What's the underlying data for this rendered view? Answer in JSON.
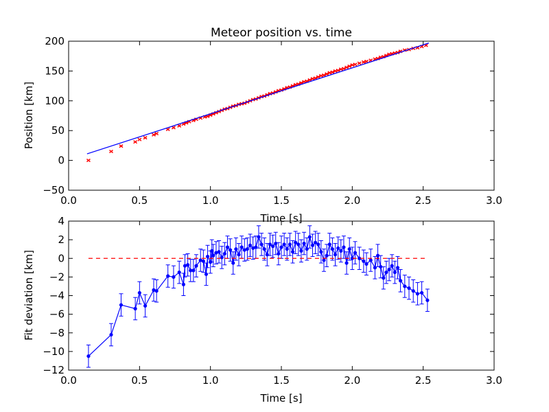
{
  "chart_data": [
    {
      "type": "scatter",
      "title": "Meteor position vs. time",
      "xlabel": "Time [s]",
      "ylabel": "Position [km]",
      "xlim": [
        0.0,
        3.0
      ],
      "ylim": [
        -50,
        200
      ],
      "xticks": [
        "0.0",
        "0.5",
        "1.0",
        "1.5",
        "2.0",
        "2.5",
        "3.0"
      ],
      "yticks": [
        "−50",
        "0",
        "50",
        "100",
        "150",
        "200"
      ],
      "grid": false,
      "series": [
        {
          "kind": "scatter_errorbar",
          "color": "#ff0000",
          "marker": "x",
          "errors": 1.0,
          "x": [
            0.14,
            0.3,
            0.37,
            0.47,
            0.5,
            0.54,
            0.6,
            0.62,
            0.7,
            0.74,
            0.78,
            0.81,
            0.83,
            0.85,
            0.88,
            0.9,
            0.93,
            0.96,
            0.98,
            1.0,
            1.02,
            1.04,
            1.06,
            1.08,
            1.1,
            1.12,
            1.14,
            1.16,
            1.18,
            1.2,
            1.22,
            1.24,
            1.26,
            1.28,
            1.3,
            1.32,
            1.34,
            1.36,
            1.38,
            1.4,
            1.42,
            1.44,
            1.46,
            1.48,
            1.5,
            1.52,
            1.54,
            1.56,
            1.58,
            1.6,
            1.62,
            1.64,
            1.66,
            1.68,
            1.7,
            1.72,
            1.74,
            1.76,
            1.78,
            1.8,
            1.82,
            1.84,
            1.86,
            1.88,
            1.9,
            1.92,
            1.94,
            1.96,
            1.98,
            2.0,
            2.02,
            2.05,
            2.08,
            2.1,
            2.13,
            2.16,
            2.18,
            2.2,
            2.22,
            2.24,
            2.26,
            2.28,
            2.3,
            2.32,
            2.34,
            2.37,
            2.4,
            2.43,
            2.46,
            2.49,
            2.52
          ],
          "y": [
            0,
            15,
            24,
            31,
            35,
            38,
            43,
            45,
            52,
            55,
            58,
            61,
            63,
            65,
            67,
            69,
            71,
            73,
            74,
            76,
            78,
            80,
            82,
            84,
            86,
            87,
            89,
            91,
            92,
            94,
            95,
            96,
            98,
            100,
            102,
            103,
            105,
            107,
            108,
            110,
            112,
            113,
            115,
            117,
            118,
            120,
            122,
            123,
            125,
            127,
            128,
            130,
            132,
            133,
            135,
            137,
            138,
            140,
            142,
            143,
            145,
            147,
            148,
            150,
            151,
            153,
            154,
            156,
            158,
            160,
            161,
            163,
            165,
            166,
            168,
            170,
            171,
            173,
            174,
            176,
            178,
            179,
            180,
            181,
            183,
            185,
            186,
            188,
            189,
            191,
            193
          ]
        },
        {
          "kind": "fit_line",
          "color": "#0000ff",
          "x": [
            0.13,
            2.54
          ],
          "y": [
            11,
            197
          ]
        }
      ]
    },
    {
      "type": "line",
      "xlabel": "Time [s]",
      "ylabel": "Fit deviation [km]",
      "xlim": [
        0.0,
        3.0
      ],
      "ylim": [
        -12,
        4
      ],
      "xticks": [
        "0.0",
        "0.5",
        "1.0",
        "1.5",
        "2.0",
        "2.5",
        "3.0"
      ],
      "yticks": [
        "−12",
        "−10",
        "−8",
        "−6",
        "−4",
        "−2",
        "0",
        "2",
        "4"
      ],
      "grid": false,
      "series": [
        {
          "kind": "line_errorbar",
          "color": "#0000ff",
          "marker": "o",
          "errors": 1.2,
          "x": [
            0.14,
            0.3,
            0.37,
            0.47,
            0.5,
            0.54,
            0.6,
            0.62,
            0.7,
            0.74,
            0.78,
            0.81,
            0.82,
            0.84,
            0.86,
            0.88,
            0.9,
            0.93,
            0.95,
            0.97,
            0.98,
            1.0,
            1.01,
            1.02,
            1.04,
            1.06,
            1.08,
            1.1,
            1.12,
            1.14,
            1.16,
            1.18,
            1.2,
            1.22,
            1.24,
            1.26,
            1.28,
            1.3,
            1.32,
            1.34,
            1.36,
            1.38,
            1.4,
            1.42,
            1.44,
            1.46,
            1.48,
            1.5,
            1.52,
            1.54,
            1.56,
            1.58,
            1.6,
            1.62,
            1.64,
            1.66,
            1.68,
            1.7,
            1.72,
            1.74,
            1.76,
            1.78,
            1.8,
            1.82,
            1.84,
            1.86,
            1.88,
            1.9,
            1.92,
            1.94,
            1.96,
            1.98,
            2.0,
            2.02,
            2.05,
            2.08,
            2.1,
            2.13,
            2.16,
            2.18,
            2.2,
            2.22,
            2.24,
            2.26,
            2.28,
            2.3,
            2.32,
            2.34,
            2.37,
            2.4,
            2.43,
            2.46,
            2.49,
            2.53
          ],
          "y": [
            -10.5,
            -8.2,
            -5.0,
            -5.4,
            -3.7,
            -5.1,
            -3.4,
            -3.5,
            -1.9,
            -2.0,
            -1.5,
            -2.8,
            -0.8,
            -0.7,
            -1.3,
            -1.3,
            -0.8,
            -0.2,
            -0.3,
            -1.7,
            0.2,
            -0.4,
            0.8,
            0.3,
            0.6,
            0.7,
            0.1,
            0.5,
            1.2,
            0.9,
            -0.5,
            1.0,
            0.4,
            1.2,
            0.9,
            1.0,
            1.4,
            1.1,
            1.2,
            2.3,
            1.5,
            1.0,
            0.4,
            1.5,
            1.3,
            1.6,
            0.5,
            1.2,
            1.5,
            1.0,
            1.5,
            0.7,
            1.7,
            1.5,
            0.8,
            1.6,
            1.0,
            2.3,
            1.4,
            1.7,
            1.5,
            0.7,
            -0.2,
            0.3,
            1.5,
            1.0,
            0.4,
            1.1,
            0.8,
            1.2,
            -0.5,
            1.0,
            0.0,
            0.6,
            0.0,
            -0.3,
            -0.6,
            -0.2,
            -1.0,
            0.3,
            -0.9,
            -2.1,
            -1.5,
            -1.2,
            -0.8,
            -1.5,
            -1.0,
            -2.4,
            -3.0,
            -3.2,
            -3.5,
            -3.8,
            -3.7,
            -4.5
          ]
        },
        {
          "kind": "reference_line",
          "color": "#ff0000",
          "style": "dashed",
          "x": [
            0.14,
            2.53
          ],
          "y": [
            0,
            0
          ]
        }
      ]
    }
  ]
}
